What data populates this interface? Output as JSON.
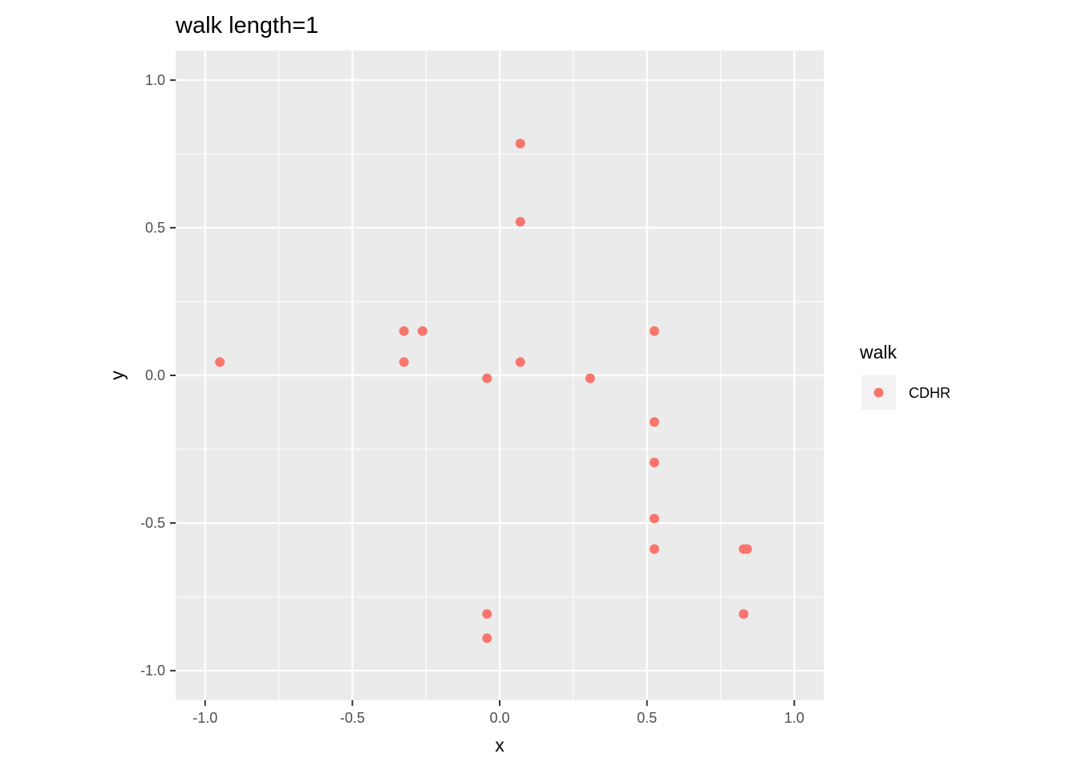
{
  "chart_data": {
    "type": "scatter",
    "title": "walk length=1",
    "xlabel": "x",
    "ylabel": "y",
    "xlim": [
      -1.1,
      1.1
    ],
    "ylim": [
      -1.1,
      1.1
    ],
    "x_ticks": [
      -1.0,
      -0.5,
      0.0,
      0.5,
      1.0
    ],
    "x_tick_labels": [
      "-1.0",
      "-0.5",
      "0.0",
      "0.5",
      "1.0"
    ],
    "y_ticks": [
      -1.0,
      -0.5,
      0.0,
      0.5,
      1.0
    ],
    "y_tick_labels": [
      "-1.0",
      "-0.5",
      "0.0",
      "0.5",
      "1.0"
    ],
    "minor_grid": [
      -0.75,
      -0.25,
      0.25,
      0.75
    ],
    "grid": true,
    "panel_color": "#ebebeb",
    "grid_color": "#ffffff",
    "legend": {
      "title": "walk",
      "placement": "right",
      "entries": [
        "CDHR"
      ]
    },
    "series": [
      {
        "name": "CDHR",
        "color": "#f8766d",
        "points": [
          {
            "x": 0.07,
            "y": 0.785
          },
          {
            "x": 0.07,
            "y": 0.52
          },
          {
            "x": -0.325,
            "y": 0.15
          },
          {
            "x": -0.262,
            "y": 0.15
          },
          {
            "x": 0.525,
            "y": 0.15
          },
          {
            "x": -0.95,
            "y": 0.045
          },
          {
            "x": -0.325,
            "y": 0.045
          },
          {
            "x": 0.07,
            "y": 0.045
          },
          {
            "x": -0.043,
            "y": -0.01
          },
          {
            "x": 0.307,
            "y": -0.01
          },
          {
            "x": 0.525,
            "y": -0.158
          },
          {
            "x": 0.525,
            "y": -0.295
          },
          {
            "x": 0.525,
            "y": -0.485
          },
          {
            "x": 0.525,
            "y": -0.588
          },
          {
            "x": 0.828,
            "y": -0.588
          },
          {
            "x": 0.84,
            "y": -0.588
          },
          {
            "x": -0.043,
            "y": -0.808
          },
          {
            "x": 0.828,
            "y": -0.808
          },
          {
            "x": -0.043,
            "y": -0.89
          }
        ]
      }
    ]
  }
}
